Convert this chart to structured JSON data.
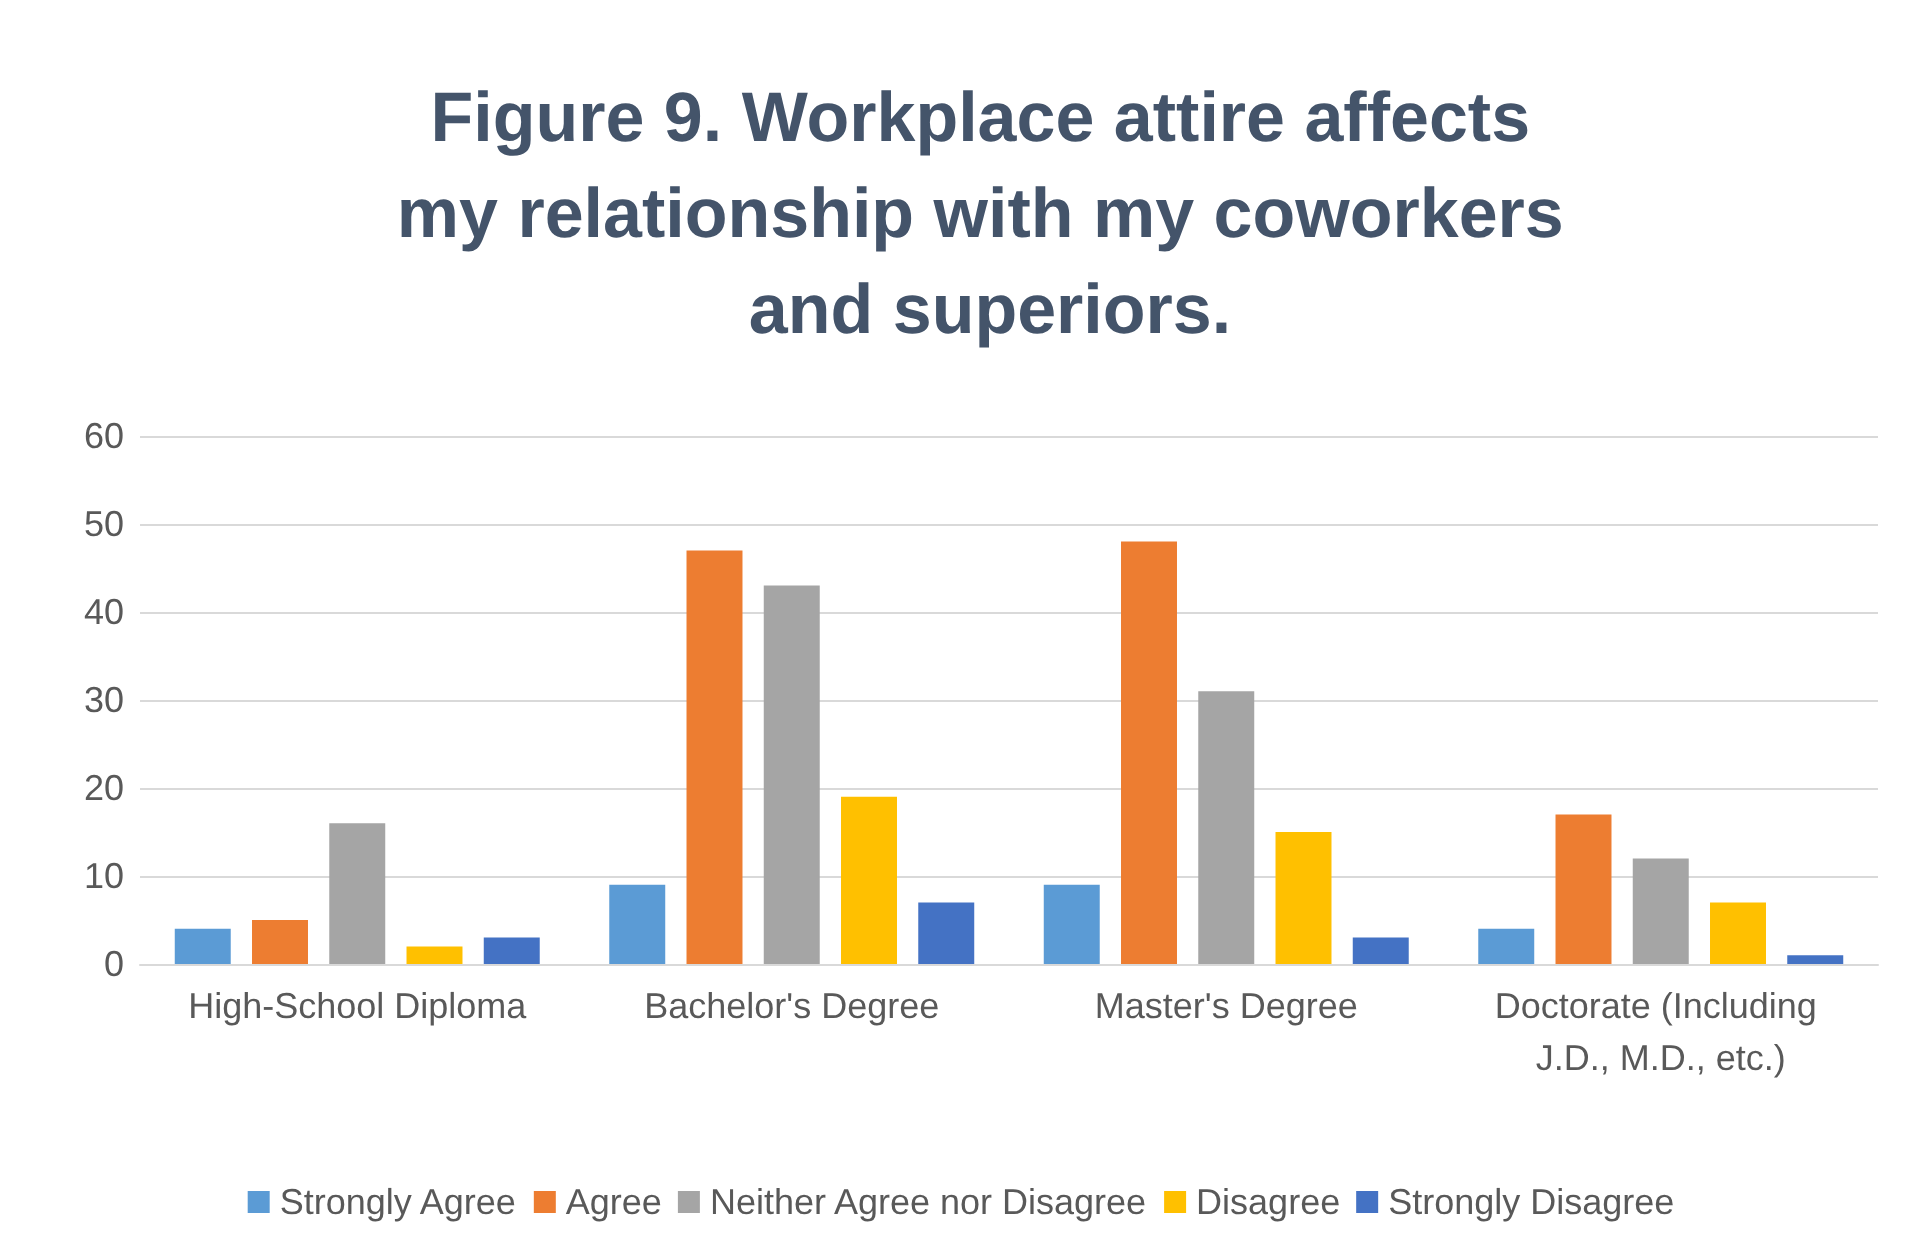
{
  "chart_data": {
    "type": "bar",
    "title": "Figure 9. Workplace attire affects my relationship with my coworkers and superiors.",
    "categories": [
      "High-School Diploma",
      "Bachelor's Degree",
      "Master's Degree",
      "Doctorate (Including J.D., M.D., etc.)"
    ],
    "series": [
      {
        "name": "Strongly Agree",
        "color": "#5b9bd5",
        "values": [
          4,
          9,
          9,
          4
        ]
      },
      {
        "name": "Agree",
        "color": "#ed7d31",
        "values": [
          5,
          47,
          48,
          17
        ]
      },
      {
        "name": "Neither Agree nor Disagree",
        "color": "#a5a5a5",
        "values": [
          16,
          43,
          31,
          12
        ]
      },
      {
        "name": "Disagree",
        "color": "#ffc000",
        "values": [
          2,
          19,
          15,
          7
        ]
      },
      {
        "name": "Strongly Disagree",
        "color": "#4472c4",
        "values": [
          3,
          7,
          3,
          1
        ]
      }
    ],
    "ylim": [
      0,
      60
    ],
    "yticks": [
      0,
      10,
      20,
      30,
      40,
      50,
      60
    ],
    "grid": "y",
    "legend": "bottom"
  }
}
